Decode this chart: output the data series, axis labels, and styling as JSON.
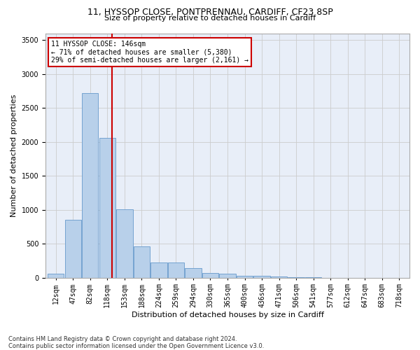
{
  "title_line1": "11, HYSSOP CLOSE, PONTPRENNAU, CARDIFF, CF23 8SP",
  "title_line2": "Size of property relative to detached houses in Cardiff",
  "xlabel": "Distribution of detached houses by size in Cardiff",
  "ylabel": "Number of detached properties",
  "footnote": "Contains HM Land Registry data © Crown copyright and database right 2024.\nContains public sector information licensed under the Open Government Licence v3.0.",
  "bar_labels": [
    "12sqm",
    "47sqm",
    "82sqm",
    "118sqm",
    "153sqm",
    "188sqm",
    "224sqm",
    "259sqm",
    "294sqm",
    "330sqm",
    "365sqm",
    "400sqm",
    "436sqm",
    "471sqm",
    "506sqm",
    "541sqm",
    "577sqm",
    "612sqm",
    "647sqm",
    "683sqm",
    "718sqm"
  ],
  "bar_values": [
    60,
    850,
    2720,
    2060,
    1005,
    455,
    220,
    220,
    135,
    65,
    55,
    30,
    25,
    15,
    5,
    5,
    0,
    0,
    0,
    0,
    0
  ],
  "bar_color": "#b8d0ea",
  "bar_edge_color": "#6699cc",
  "annotation_text_line1": "11 HYSSOP CLOSE: 146sqm",
  "annotation_text_line2": "← 71% of detached houses are smaller (5,380)",
  "annotation_text_line3": "29% of semi-detached houses are larger (2,161) →",
  "annotation_box_color": "#ffffff",
  "annotation_box_edge": "#cc0000",
  "vline_color": "#cc0000",
  "ylim": [
    0,
    3600
  ],
  "background_color": "#e8eef8",
  "grid_color": "#cccccc",
  "title1_fontsize": 9,
  "title2_fontsize": 8,
  "ylabel_fontsize": 8,
  "xlabel_fontsize": 8,
  "tick_fontsize": 7,
  "annot_fontsize": 7,
  "footnote_fontsize": 6
}
